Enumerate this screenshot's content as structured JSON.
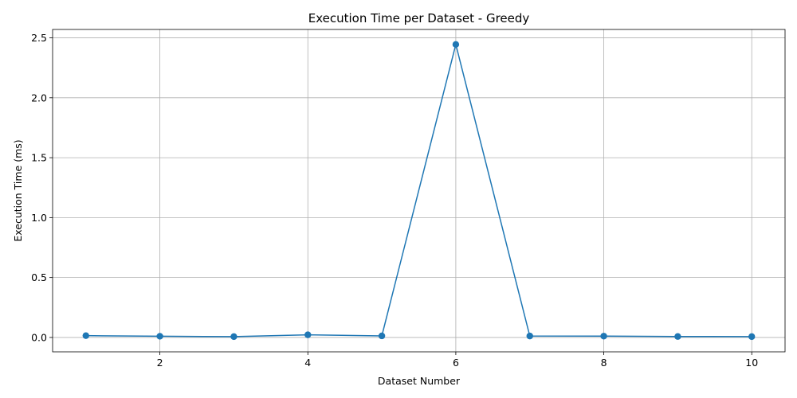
{
  "chart_data": {
    "type": "line",
    "title": "Execution Time per Dataset - Greedy",
    "xlabel": "Dataset Number",
    "ylabel": "Execution Time (ms)",
    "x": [
      1,
      2,
      3,
      4,
      5,
      6,
      7,
      8,
      9,
      10
    ],
    "series": [
      {
        "values": [
          0.015,
          0.01,
          0.007,
          0.022,
          0.013,
          2.445,
          0.012,
          0.011,
          0.008,
          0.007
        ],
        "color": "#1f77b4",
        "marker": "circle"
      }
    ],
    "xlim": [
      0.55,
      10.45
    ],
    "ylim": [
      -0.12,
      2.57
    ],
    "xticks": [
      2,
      4,
      6,
      8,
      10
    ],
    "yticks": [
      0.0,
      0.5,
      1.0,
      1.5,
      2.0,
      2.5
    ],
    "xtick_labels": [
      "2",
      "4",
      "6",
      "8",
      "10"
    ],
    "ytick_labels": [
      "0.0",
      "0.5",
      "1.0",
      "1.5",
      "2.0",
      "2.5"
    ],
    "grid": true
  }
}
